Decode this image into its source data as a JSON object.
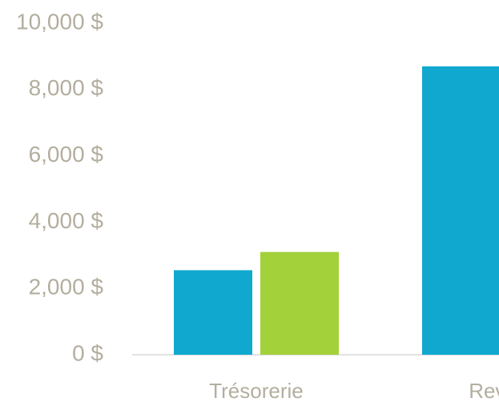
{
  "chart_data": {
    "type": "bar",
    "categories": [
      "Trésorerie",
      "Revenu"
    ],
    "series": [
      {
        "color": "#10a8cf",
        "values": [
          2550,
          8700
        ]
      },
      {
        "color": "#a3d13a",
        "values": [
          3100,
          null
        ]
      }
    ],
    "ylim": [
      0,
      10000
    ],
    "yticks": [
      {
        "value": 0,
        "label": "0 $"
      },
      {
        "value": 2000,
        "label": "2,000 $"
      },
      {
        "value": 4000,
        "label": "4,000 $"
      },
      {
        "value": 6000,
        "label": "6,000 $"
      },
      {
        "value": 8000,
        "label": "8,000 $"
      },
      {
        "value": 10000,
        "label": "10,000 $"
      }
    ],
    "grid": false
  }
}
